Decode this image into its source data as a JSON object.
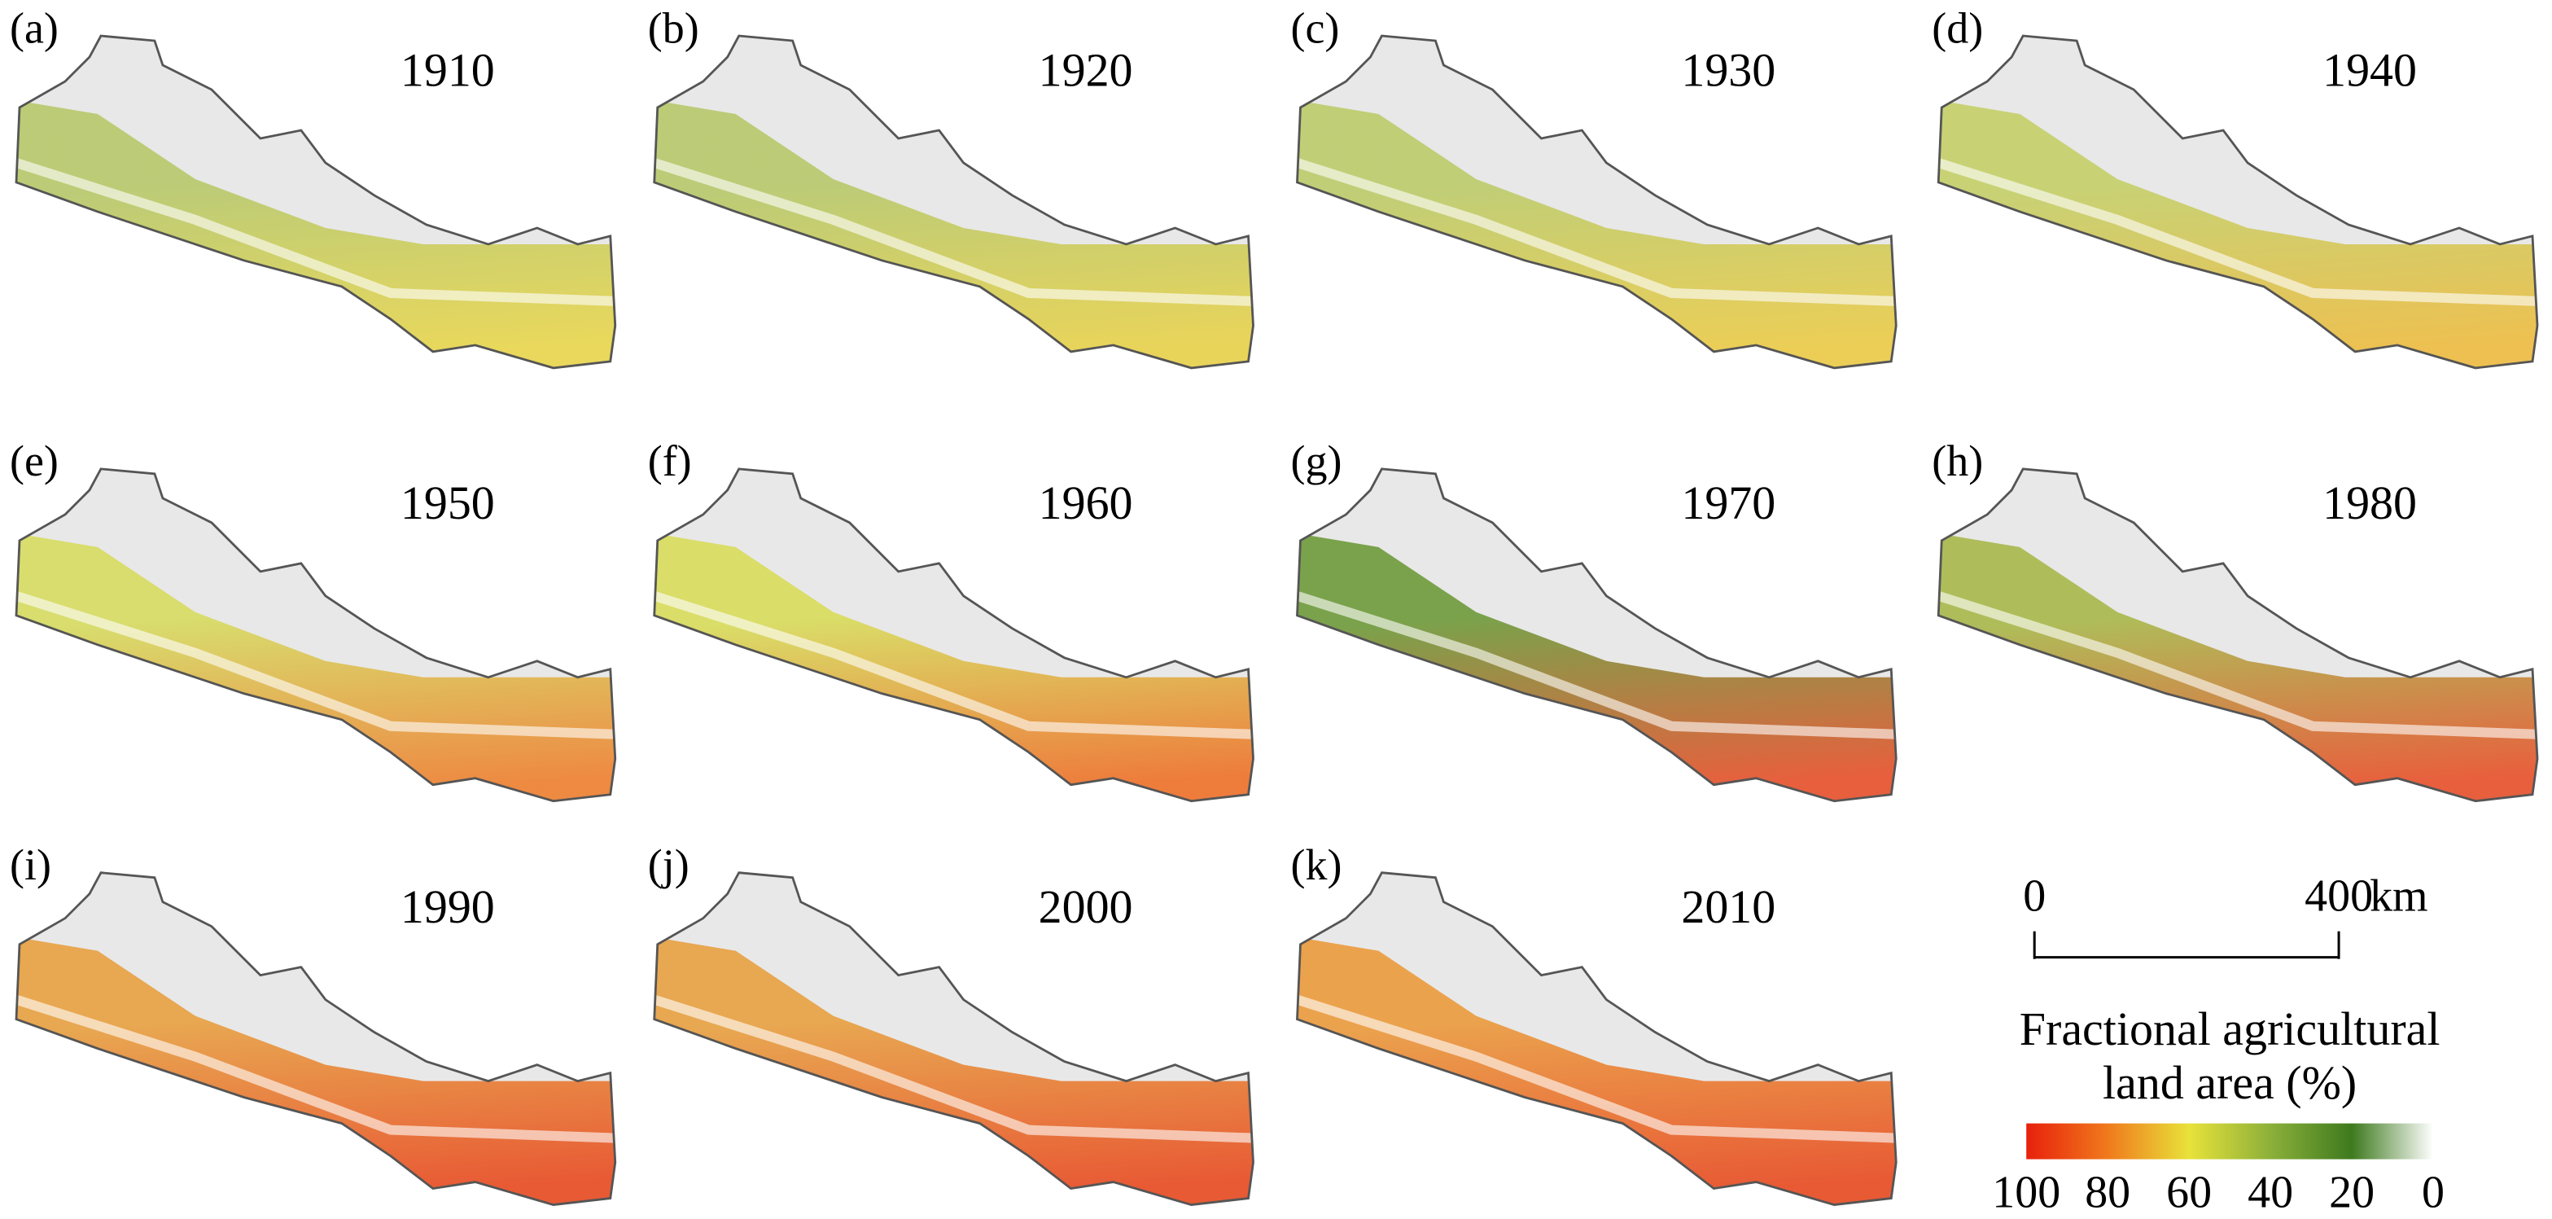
{
  "panels": [
    {
      "label": "(a)",
      "year": "1910",
      "colors": [
        "#b7c86a",
        "#e9d64c"
      ]
    },
    {
      "label": "(b)",
      "year": "1920",
      "colors": [
        "#b7c86a",
        "#e9d24a"
      ]
    },
    {
      "label": "(c)",
      "year": "1930",
      "colors": [
        "#bccb6a",
        "#eccb46"
      ]
    },
    {
      "label": "(d)",
      "year": "1940",
      "colors": [
        "#c4cf68",
        "#eebc40"
      ]
    },
    {
      "label": "(e)",
      "year": "1950",
      "colors": [
        "#d6dc60",
        "#ee8030"
      ]
    },
    {
      "label": "(f)",
      "year": "1960",
      "colors": [
        "#d8dc5a",
        "#ee7028"
      ]
    },
    {
      "label": "(g)",
      "year": "1970",
      "colors": [
        "#6e9a3a",
        "#e8502a"
      ]
    },
    {
      "label": "(h)",
      "year": "1980",
      "colors": [
        "#a8b84a",
        "#e8502a"
      ]
    },
    {
      "label": "(i)",
      "year": "1990",
      "colors": [
        "#e8a040",
        "#e84a20"
      ]
    },
    {
      "label": "(j)",
      "year": "2000",
      "colors": [
        "#e8a040",
        "#e84a20"
      ]
    },
    {
      "label": "(k)",
      "year": "2010",
      "colors": [
        "#eb9a3c",
        "#e84a20"
      ]
    }
  ],
  "scale_bar": {
    "ticks": [
      0,
      400
    ],
    "unit": "km"
  },
  "colorbar": {
    "title": [
      "Fractional agricultural",
      "land area (%)"
    ],
    "ticks": [
      100,
      80,
      60,
      40,
      20,
      0
    ],
    "colors": [
      "#e8200c",
      "#f07a1c",
      "#e8e23a",
      "#8cb03a",
      "#3e7a1e",
      "#ffffff"
    ]
  }
}
